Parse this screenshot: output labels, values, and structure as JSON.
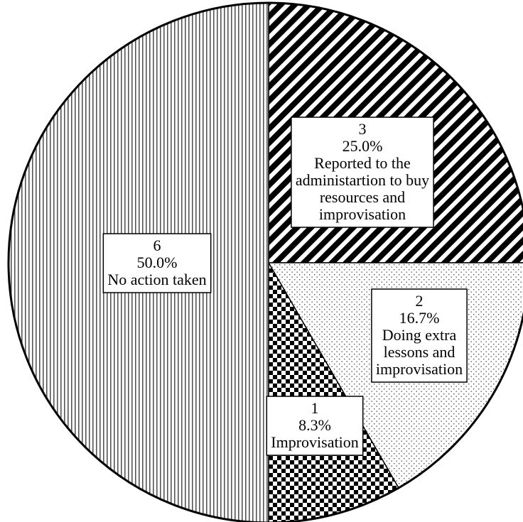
{
  "chart_data": {
    "type": "pie",
    "slices": [
      {
        "count": "3",
        "percent": "25.0%",
        "label": "Reported to the administartion to buy resources and improvisation",
        "label_lines": [
          "Reported to the",
          "administartion to buy",
          "resources and",
          "improvisation"
        ],
        "value": 3,
        "pattern": "diagonal-stripes"
      },
      {
        "count": "2",
        "percent": "16.7%",
        "label": "Doing extra lessons and improvisation",
        "label_lines": [
          "Doing extra",
          "lessons and",
          "improvisation"
        ],
        "value": 2,
        "pattern": "dots"
      },
      {
        "count": "1",
        "percent": "8.3%",
        "label": "Improvisation",
        "label_lines": [
          "Improvisation"
        ],
        "value": 1,
        "pattern": "checkerboard"
      },
      {
        "count": "6",
        "percent": "50.0%",
        "label": "No action taken",
        "label_lines": [
          "No action taken"
        ],
        "value": 6,
        "pattern": "vertical-stripes"
      }
    ],
    "start_angle": "top (12 o'clock)",
    "direction": "clockwise",
    "colors": {
      "ink": "#000000",
      "background": "#ffffff"
    }
  }
}
